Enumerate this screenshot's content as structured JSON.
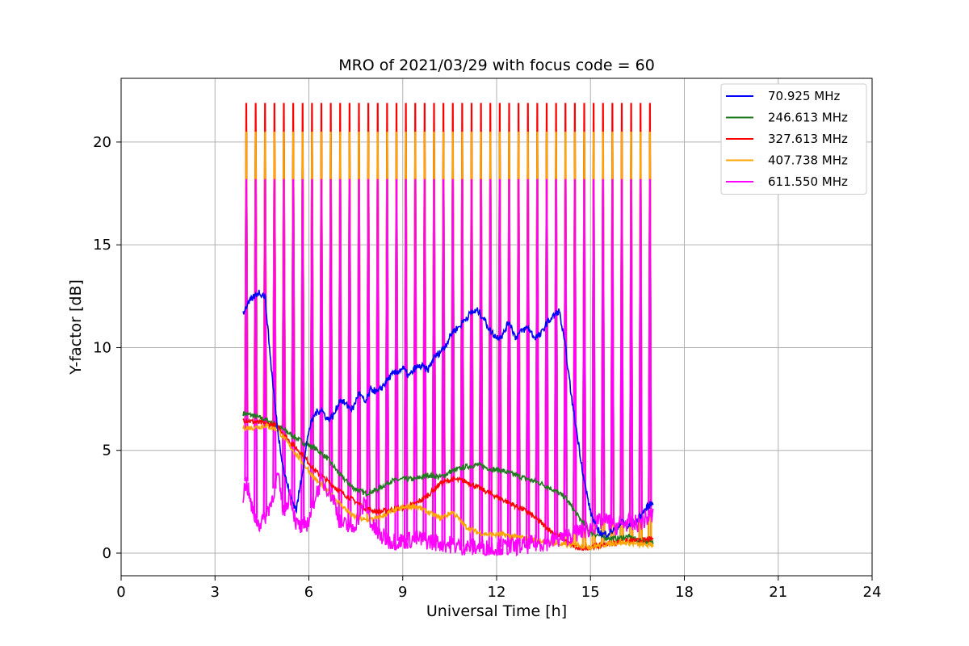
{
  "chart_data": {
    "type": "line",
    "title": "MRO of 2021/03/29 with focus code = 60",
    "xlabel": "Universal Time [h]",
    "ylabel": "Y-factor [dB]",
    "xlim": [
      0,
      24
    ],
    "ylim": [
      -1.1,
      23.1
    ],
    "xticks": [
      0,
      3,
      6,
      9,
      12,
      15,
      18,
      21,
      24
    ],
    "yticks": [
      0,
      5,
      10,
      15,
      20
    ],
    "grid": true,
    "legend_position": "top-right",
    "calibration_spikes": {
      "interval_h": 0.3,
      "time_range_h": [
        4.0,
        17.0
      ],
      "peak_values_db": {
        "70.925 MHz": null,
        "246.613 MHz": 20.5,
        "327.613 MHz": 21.9,
        "407.738 MHz": 20.5,
        "611.550 MHz": 18.2
      }
    },
    "series": [
      {
        "name": "70.925 MHz",
        "color": "#0000ff",
        "x": [
          3.9,
          4.0,
          4.2,
          4.4,
          4.6,
          4.8,
          5.0,
          5.2,
          5.4,
          5.6,
          5.8,
          6.0,
          6.2,
          6.4,
          6.6,
          6.8,
          7.0,
          7.2,
          7.4,
          7.6,
          7.8,
          8.0,
          8.2,
          8.4,
          8.6,
          8.8,
          9.0,
          9.2,
          9.4,
          9.6,
          9.8,
          10.0,
          10.2,
          10.4,
          10.6,
          10.8,
          11.0,
          11.2,
          11.4,
          11.6,
          11.8,
          12.0,
          12.2,
          12.4,
          12.6,
          12.8,
          13.0,
          13.2,
          13.4,
          13.6,
          13.8,
          14.0,
          14.2,
          14.4,
          14.6,
          14.8,
          15.0,
          15.2,
          15.4,
          15.6,
          15.8,
          16.0,
          16.2,
          16.4,
          16.6,
          16.8,
          17.0
        ],
        "values": [
          11.7,
          12.0,
          12.4,
          12.7,
          12.5,
          9.0,
          6.0,
          4.0,
          2.8,
          2.1,
          4.0,
          6.0,
          6.8,
          7.0,
          6.5,
          6.7,
          7.5,
          7.2,
          7.0,
          7.8,
          7.3,
          8.0,
          7.8,
          8.2,
          8.6,
          8.8,
          9.0,
          8.6,
          9.0,
          9.1,
          8.9,
          9.5,
          9.8,
          10.2,
          10.8,
          11.0,
          11.4,
          11.7,
          11.8,
          11.4,
          10.8,
          10.5,
          10.6,
          11.3,
          10.5,
          10.8,
          11.0,
          10.5,
          10.6,
          11.2,
          11.5,
          11.8,
          10.0,
          7.5,
          5.5,
          3.5,
          2.0,
          1.2,
          0.9,
          1.0,
          1.2,
          1.5,
          1.3,
          1.4,
          1.8,
          2.2,
          2.5
        ]
      },
      {
        "name": "246.613 MHz",
        "color": "#1f7a1f",
        "x": [
          3.9,
          4.2,
          4.6,
          5.0,
          5.4,
          5.8,
          6.2,
          6.6,
          7.0,
          7.4,
          7.8,
          8.2,
          8.6,
          9.0,
          9.4,
          9.8,
          10.2,
          10.6,
          11.0,
          11.4,
          11.8,
          12.2,
          12.6,
          13.0,
          13.4,
          13.8,
          14.2,
          14.6,
          15.0,
          15.4,
          15.8,
          16.2,
          16.6,
          17.0
        ],
        "values": [
          6.8,
          6.7,
          6.5,
          6.2,
          5.8,
          5.4,
          5.1,
          4.6,
          3.8,
          3.2,
          2.9,
          3.1,
          3.5,
          3.6,
          3.6,
          3.8,
          3.7,
          4.0,
          4.2,
          4.3,
          4.1,
          4.0,
          3.8,
          3.6,
          3.4,
          3.1,
          2.7,
          1.8,
          1.0,
          0.8,
          0.7,
          0.8,
          0.6,
          0.5
        ]
      },
      {
        "name": "327.613 MHz",
        "color": "#ff0000",
        "x": [
          3.9,
          4.2,
          4.6,
          5.0,
          5.4,
          5.8,
          6.2,
          6.6,
          7.0,
          7.4,
          7.8,
          8.2,
          8.6,
          9.0,
          9.4,
          9.8,
          10.2,
          10.6,
          11.0,
          11.4,
          11.8,
          12.2,
          12.6,
          13.0,
          13.4,
          13.8,
          14.2,
          14.6,
          15.0,
          15.4,
          15.8,
          16.2,
          16.6,
          17.0
        ],
        "values": [
          6.5,
          6.4,
          6.3,
          6.2,
          5.4,
          4.8,
          4.0,
          3.5,
          3.0,
          2.6,
          2.2,
          2.0,
          2.1,
          2.2,
          2.4,
          2.8,
          3.4,
          3.6,
          3.5,
          3.2,
          2.9,
          2.6,
          2.3,
          2.0,
          1.5,
          1.0,
          0.6,
          0.2,
          0.3,
          0.4,
          0.5,
          0.6,
          0.6,
          0.7
        ]
      },
      {
        "name": "407.738 MHz",
        "color": "#ffa500",
        "x": [
          3.9,
          4.2,
          4.6,
          5.0,
          5.4,
          5.8,
          6.2,
          6.6,
          7.0,
          7.4,
          7.8,
          8.2,
          8.6,
          9.0,
          9.4,
          9.8,
          10.2,
          10.6,
          11.0,
          11.4,
          11.8,
          12.2,
          12.6,
          13.0,
          13.4,
          13.8,
          14.2,
          14.6,
          15.0,
          15.4,
          15.8,
          16.2,
          16.6,
          17.0
        ],
        "values": [
          6.1,
          6.1,
          6.2,
          6.0,
          5.2,
          4.4,
          3.6,
          3.0,
          2.4,
          1.8,
          1.6,
          1.7,
          2.0,
          2.2,
          2.3,
          2.0,
          1.7,
          2.0,
          1.3,
          1.0,
          0.9,
          0.9,
          0.8,
          0.7,
          0.6,
          0.5,
          0.4,
          0.4,
          0.3,
          0.4,
          0.5,
          0.5,
          0.4,
          0.4
        ]
      },
      {
        "name": "611.550 MHz",
        "color": "#ff00ff",
        "x": [
          3.9,
          4.0,
          4.2,
          4.4,
          4.6,
          4.8,
          5.0,
          5.2,
          5.4,
          5.6,
          5.8,
          6.0,
          6.2,
          6.4,
          6.6,
          6.8,
          7.0,
          7.2,
          7.4,
          7.6,
          7.8,
          8.0,
          8.2,
          8.6,
          9.0,
          9.4,
          9.8,
          10.2,
          10.6,
          11.0,
          11.4,
          11.8,
          12.2,
          12.6,
          13.0,
          13.4,
          13.8,
          14.2,
          14.6,
          15.0,
          15.2,
          15.4,
          15.6,
          15.8,
          16.0,
          16.2,
          16.4,
          16.6,
          16.8,
          17.0
        ],
        "values": [
          2.8,
          3.5,
          2.0,
          1.4,
          1.8,
          2.5,
          3.8,
          2.0,
          2.9,
          1.4,
          1.2,
          1.6,
          2.8,
          3.5,
          3.2,
          2.6,
          1.5,
          1.3,
          1.2,
          1.8,
          2.5,
          1.4,
          0.9,
          0.6,
          0.6,
          0.7,
          0.6,
          0.5,
          0.4,
          0.3,
          0.3,
          0.2,
          0.3,
          0.3,
          0.4,
          0.5,
          0.6,
          0.8,
          1.0,
          1.2,
          1.4,
          1.6,
          1.5,
          1.3,
          1.4,
          1.5,
          1.4,
          1.5,
          1.7,
          1.8
        ]
      }
    ]
  }
}
